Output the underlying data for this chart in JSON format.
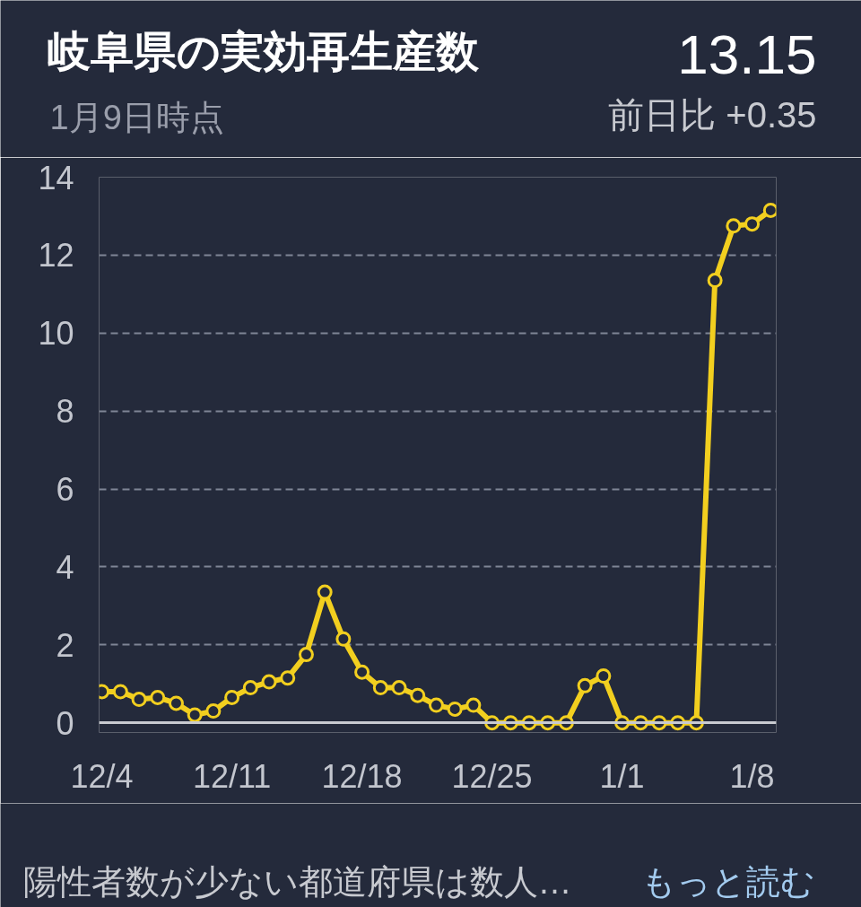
{
  "chart_data": {
    "type": "line",
    "title": "岐阜県の実効再生産数",
    "subtitle": "1月9日時点",
    "annotations": [
      "13.15",
      "前日比 +0.35",
      "陽性者数が少ない都道府県は数人…",
      "もっと読む"
    ],
    "categories": [
      "12/4",
      null,
      null,
      null,
      null,
      null,
      null,
      "12/11",
      null,
      null,
      null,
      null,
      null,
      null,
      "12/18",
      null,
      null,
      null,
      null,
      null,
      null,
      "12/25",
      null,
      null,
      null,
      null,
      null,
      null,
      "1/1",
      null,
      null,
      null,
      null,
      null,
      null,
      "1/8",
      null
    ],
    "values": [
      0.8,
      0.8,
      0.6,
      0.65,
      0.5,
      0.2,
      0.3,
      0.65,
      0.9,
      1.05,
      1.15,
      1.75,
      3.35,
      2.15,
      1.3,
      0.9,
      0.9,
      0.7,
      0.45,
      0.35,
      0.45,
      0,
      0,
      0,
      0,
      0,
      0.95,
      1.2,
      0,
      0,
      0,
      0,
      0,
      11.35,
      12.75,
      12.8,
      13.15
    ],
    "color": "#f2cf1f",
    "ylim": [
      -0.25,
      14
    ],
    "yticks": [
      0,
      2,
      4,
      6,
      8,
      10,
      12,
      14
    ],
    "grid": "y",
    "marker": "circle",
    "line_style": "solid"
  }
}
